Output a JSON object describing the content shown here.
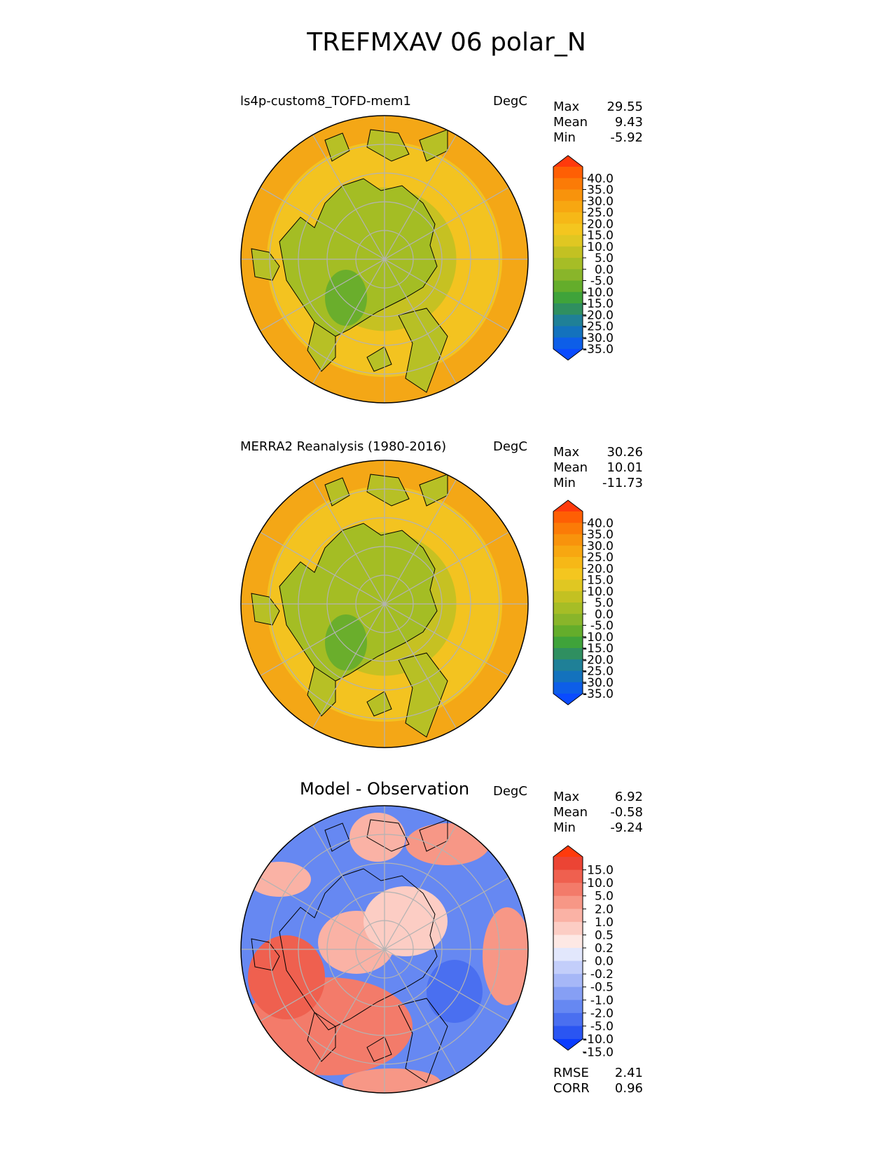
{
  "figure_title": "TREFMXAV 06 polar_N",
  "colors": {
    "seq": [
      "#0a4bff",
      "#0d5ee8",
      "#1372bd",
      "#1f8097",
      "#2f8f60",
      "#3fa33a",
      "#64ad2b",
      "#89b52a",
      "#a6bd26",
      "#c3c122",
      "#e0c722",
      "#f4c61f",
      "#f6b817",
      "#f7a711",
      "#f8930c",
      "#fb7b07",
      "#fe5f04",
      "#ff3a0c"
    ],
    "div": [
      "#0a3cff",
      "#2a55f2",
      "#4a6ff0",
      "#6688f2",
      "#869ff4",
      "#a6b7f7",
      "#c3cefa",
      "#e2e7fc",
      "#fde8e4",
      "#fccdc4",
      "#fab2a5",
      "#f79786",
      "#f37b6a",
      "#ef604f",
      "#eb4434",
      "#ff3a0c"
    ],
    "ocean": "#f3c320",
    "land": "#a6bd26",
    "coast": "#000000",
    "grid": "#b3b3b3"
  },
  "panels": [
    {
      "id": "model",
      "title": "ls4p-custom8_TOFD-mem1",
      "units": "DegC",
      "stats": {
        "max_label": "Max",
        "max": "29.55",
        "mean_label": "Mean",
        "mean": "9.43",
        "min_label": "Min",
        "min": "-5.92"
      },
      "colorbar_ticks": [
        "40.0",
        "35.0",
        "30.0",
        "25.0",
        "20.0",
        "15.0",
        "10.0",
        "5.0",
        "0.0",
        "-5.0",
        "-10.0",
        "-15.0",
        "-20.0",
        "-25.0",
        "-30.0",
        "-35.0"
      ]
    },
    {
      "id": "obs",
      "title": "MERRA2 Reanalysis (1980-2016)",
      "units": "DegC",
      "stats": {
        "max_label": "Max",
        "max": "30.26",
        "mean_label": "Mean",
        "mean": "10.01",
        "min_label": "Min",
        "min": "-11.73"
      },
      "colorbar_ticks": [
        "40.0",
        "35.0",
        "30.0",
        "25.0",
        "20.0",
        "15.0",
        "10.0",
        "5.0",
        "0.0",
        "-5.0",
        "-10.0",
        "-15.0",
        "-20.0",
        "-25.0",
        "-30.0",
        "-35.0"
      ]
    },
    {
      "id": "diff",
      "title": "Model - Observation",
      "units": "DegC",
      "stats": {
        "max_label": "Max",
        "max": "6.92",
        "mean_label": "Mean",
        "mean": "-0.58",
        "min_label": "Min",
        "min": "-9.24"
      },
      "colorbar_ticks": [
        "15.0",
        "10.0",
        "5.0",
        "2.0",
        "1.0",
        "0.5",
        "0.2",
        "0.0",
        "-0.2",
        "-0.5",
        "-1.0",
        "-2.0",
        "-5.0",
        "-10.0",
        "-15.0"
      ],
      "rmse_label": "RMSE",
      "rmse": "2.41",
      "corr_label": "CORR",
      "corr": "0.96"
    }
  ]
}
